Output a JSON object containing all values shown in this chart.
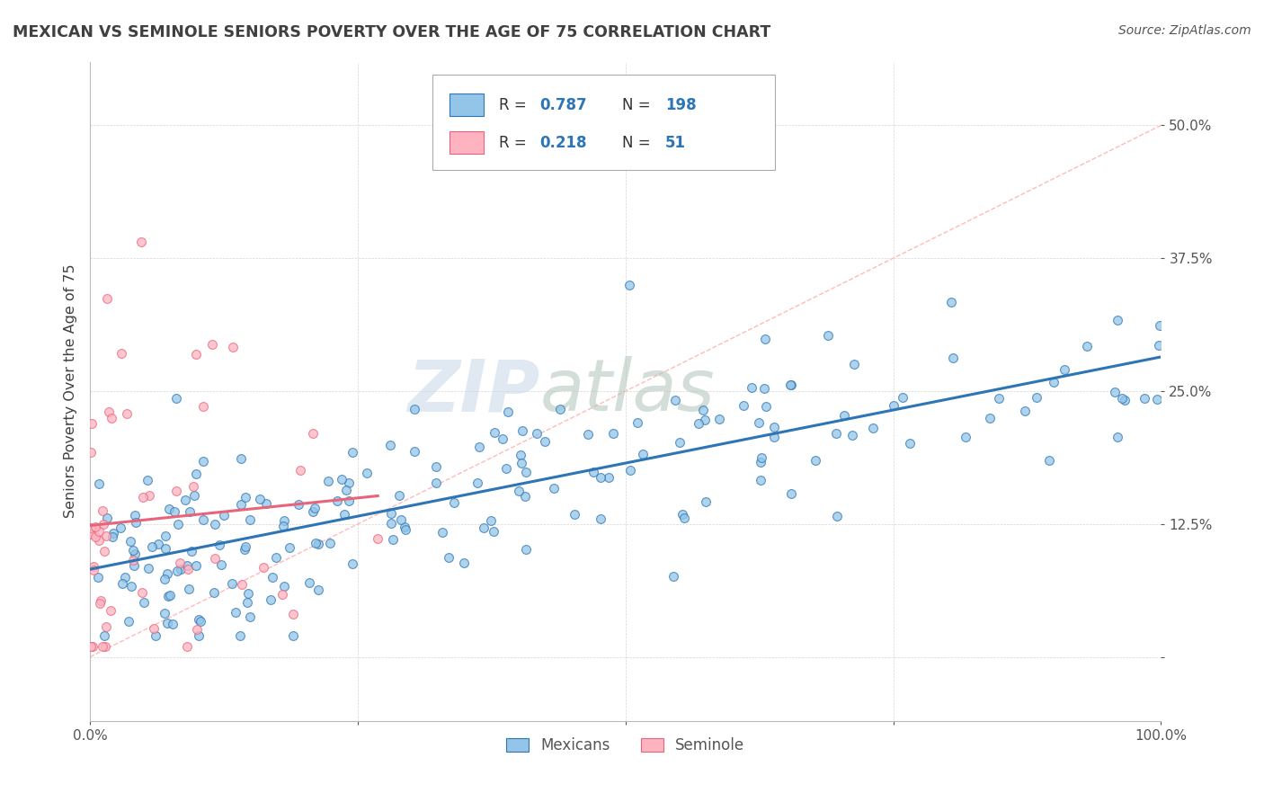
{
  "title": "MEXICAN VS SEMINOLE SENIORS POVERTY OVER THE AGE OF 75 CORRELATION CHART",
  "source": "Source: ZipAtlas.com",
  "ylabel": "Seniors Poverty Over the Age of 75",
  "xlim": [
    0.0,
    1.0
  ],
  "ylim": [
    -0.06,
    0.56
  ],
  "yticks": [
    0.0,
    0.125,
    0.25,
    0.375,
    0.5
  ],
  "ytick_labels": [
    "",
    "12.5%",
    "25.0%",
    "37.5%",
    "50.0%"
  ],
  "xticks": [
    0.0,
    0.25,
    0.5,
    0.75,
    1.0
  ],
  "xtick_labels": [
    "0.0%",
    "",
    "",
    "",
    "100.0%"
  ],
  "blue_R": 0.787,
  "blue_N": 198,
  "pink_R": 0.218,
  "pink_N": 51,
  "blue_color": "#92C5E8",
  "pink_color": "#FFB3C1",
  "blue_line_color": "#2E75B6",
  "pink_line_color": "#E8647A",
  "diag_color": "#FFB3B3",
  "title_color": "#404040",
  "watermark_zip": "ZIP",
  "watermark_atlas": "atlas",
  "legend_label_blue": "Mexicans",
  "legend_label_pink": "Seminole"
}
